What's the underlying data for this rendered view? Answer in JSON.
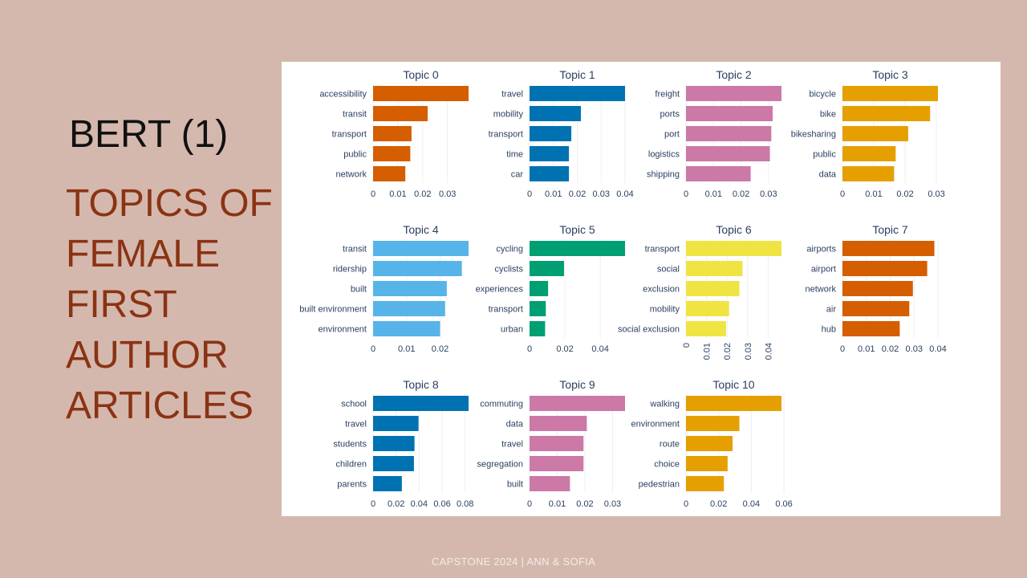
{
  "slide": {
    "title": "BERT (1)",
    "subtitle_lines": [
      "TOPICS OF",
      "FEMALE",
      "FIRST",
      "AUTHOR",
      "ARTICLES"
    ],
    "footer": "CAPSTONE 2024 | ANN & SOFIA"
  },
  "chart_data": [
    {
      "type": "bar",
      "orientation": "horizontal",
      "title": "Topic 0",
      "color": "#d55e00",
      "categories": [
        "accessibility",
        "transit",
        "transport",
        "public",
        "network"
      ],
      "values": [
        0.0385,
        0.022,
        0.0155,
        0.015,
        0.013
      ],
      "xlim": [
        0,
        0.0385
      ],
      "xticks": [
        0,
        0.01,
        0.02,
        0.03
      ],
      "xtick_labels": [
        "0",
        "0.01",
        "0.02",
        "0.03"
      ]
    },
    {
      "type": "bar",
      "orientation": "horizontal",
      "title": "Topic 1",
      "color": "#0072b2",
      "categories": [
        "travel",
        "mobility",
        "transport",
        "time",
        "car"
      ],
      "values": [
        0.04,
        0.0215,
        0.0175,
        0.0165,
        0.0165
      ],
      "xlim": [
        0,
        0.04
      ],
      "xticks": [
        0,
        0.01,
        0.02,
        0.03,
        0.04
      ],
      "xtick_labels": [
        "0",
        "0.01",
        "0.02",
        "0.03",
        "0.04"
      ]
    },
    {
      "type": "bar",
      "orientation": "horizontal",
      "title": "Topic 2",
      "color": "#cc79a7",
      "categories": [
        "freight",
        "ports",
        "port",
        "logistics",
        "shipping"
      ],
      "values": [
        0.0347,
        0.0315,
        0.031,
        0.0305,
        0.0235
      ],
      "xlim": [
        0,
        0.0347
      ],
      "xticks": [
        0,
        0.01,
        0.02,
        0.03
      ],
      "xtick_labels": [
        "0",
        "0.01",
        "0.02",
        "0.03"
      ]
    },
    {
      "type": "bar",
      "orientation": "horizontal",
      "title": "Topic 3",
      "color": "#e69f00",
      "categories": [
        "bicycle",
        "bike",
        "bikesharing",
        "public",
        "data"
      ],
      "values": [
        0.0305,
        0.028,
        0.021,
        0.017,
        0.0165
      ],
      "xlim": [
        0,
        0.0305
      ],
      "xticks": [
        0,
        0.01,
        0.02,
        0.03
      ],
      "xtick_labels": [
        "0",
        "0.01",
        "0.02",
        "0.03"
      ]
    },
    {
      "type": "bar",
      "orientation": "horizontal",
      "title": "Topic 4",
      "color": "#56b4e9",
      "categories": [
        "transit",
        "ridership",
        "built",
        "built environment",
        "environment"
      ],
      "values": [
        0.0285,
        0.0265,
        0.022,
        0.0215,
        0.02
      ],
      "xlim": [
        0,
        0.0285
      ],
      "xticks": [
        0,
        0.01,
        0.02
      ],
      "xtick_labels": [
        "0",
        "0.01",
        "0.02"
      ]
    },
    {
      "type": "bar",
      "orientation": "horizontal",
      "title": "Topic 5",
      "color": "#009e73",
      "categories": [
        "cycling",
        "cyclists",
        "experiences",
        "transport",
        "urban"
      ],
      "values": [
        0.054,
        0.0195,
        0.0105,
        0.0092,
        0.0088
      ],
      "xlim": [
        0,
        0.054
      ],
      "xticks": [
        0,
        0.02,
        0.04
      ],
      "xtick_labels": [
        "0",
        "0.02",
        "0.04"
      ]
    },
    {
      "type": "bar",
      "orientation": "horizontal",
      "title": "Topic 6",
      "color": "#f0e442",
      "categories": [
        "transport",
        "social",
        "exclusion",
        "mobility",
        "social exclusion"
      ],
      "values": [
        0.0465,
        0.0275,
        0.026,
        0.021,
        0.0195
      ],
      "xlim": [
        0,
        0.0465
      ],
      "xticks": [
        0,
        0.01,
        0.02,
        0.03,
        0.04
      ],
      "xtick_labels": [
        "0",
        "0.01",
        "0.02",
        "0.03",
        "0.04"
      ],
      "tick_rotation": 90
    },
    {
      "type": "bar",
      "orientation": "horizontal",
      "title": "Topic 7",
      "color": "#d55e00",
      "categories": [
        "airports",
        "airport",
        "network",
        "air",
        "hub"
      ],
      "values": [
        0.0385,
        0.0355,
        0.0295,
        0.028,
        0.024
      ],
      "xlim": [
        0,
        0.04
      ],
      "xticks": [
        0,
        0.01,
        0.02,
        0.03,
        0.04
      ],
      "xtick_labels": [
        "0",
        "0.01",
        "0.02",
        "0.03",
        "0.04"
      ]
    },
    {
      "type": "bar",
      "orientation": "horizontal",
      "title": "Topic 8",
      "color": "#0072b2",
      "categories": [
        "school",
        "travel",
        "students",
        "children",
        "parents"
      ],
      "values": [
        0.083,
        0.0395,
        0.036,
        0.0355,
        0.025
      ],
      "xlim": [
        0,
        0.083
      ],
      "xticks": [
        0,
        0.02,
        0.04,
        0.06,
        0.08
      ],
      "xtick_labels": [
        "0",
        "0.02",
        "0.04",
        "0.06",
        "0.08"
      ]
    },
    {
      "type": "bar",
      "orientation": "horizontal",
      "title": "Topic 9",
      "color": "#cc79a7",
      "categories": [
        "commuting",
        "data",
        "travel",
        "segregation",
        "built"
      ],
      "values": [
        0.0345,
        0.0207,
        0.0195,
        0.0195,
        0.0146
      ],
      "xlim": [
        0,
        0.0345
      ],
      "xticks": [
        0,
        0.01,
        0.02,
        0.03
      ],
      "xtick_labels": [
        "0",
        "0.01",
        "0.02",
        "0.03"
      ]
    },
    {
      "type": "bar",
      "orientation": "horizontal",
      "title": "Topic 10",
      "color": "#e69f00",
      "categories": [
        "walking",
        "environment",
        "route",
        "choice",
        "pedestrian"
      ],
      "values": [
        0.0585,
        0.0327,
        0.0285,
        0.0255,
        0.0232
      ],
      "xlim": [
        0,
        0.0585
      ],
      "xticks": [
        0,
        0.02,
        0.04,
        0.06
      ],
      "xtick_labels": [
        "0",
        "0.02",
        "0.04",
        "0.06"
      ]
    }
  ]
}
